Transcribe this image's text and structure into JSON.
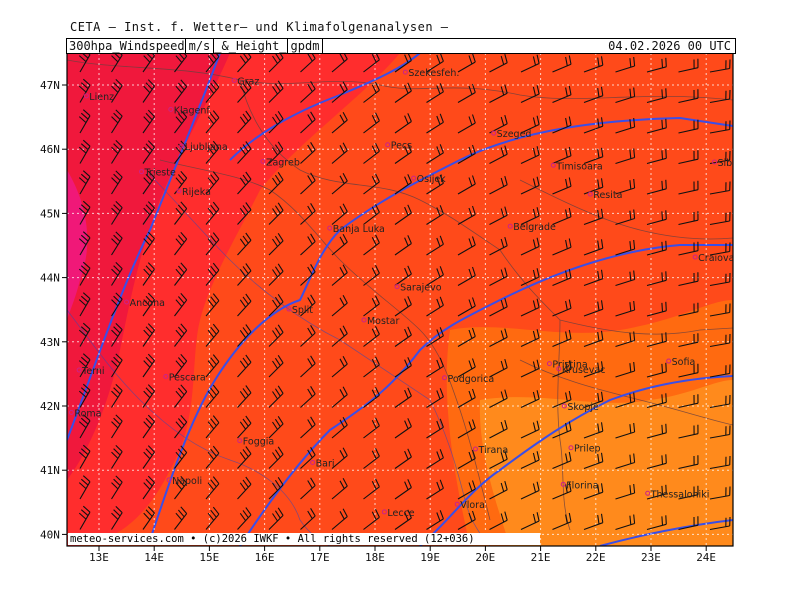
{
  "header": {
    "top_title": "CETA — Inst. f. Wetter— und Klimafolgenanalysen —",
    "product": "300hpa_Windspeed",
    "unit1": "m/s",
    "connector": "_&_Height_",
    "unit2": "gpdm",
    "valid_time": "04.02.2026 00 UTC"
  },
  "footer": {
    "credit": "meteo-services.com • (c)2026 IWKF • All rights reserved (12+036)"
  },
  "axes": {
    "lat_labels": [
      "47N",
      "46N",
      "45N",
      "44N",
      "43N",
      "42N",
      "41N",
      "40N"
    ],
    "lon_labels": [
      "13E",
      "14E",
      "15E",
      "16E",
      "17E",
      "18E",
      "19E",
      "20E",
      "21E",
      "22E",
      "23E",
      "24E"
    ]
  },
  "colors": {
    "wind_strong": "#f0183c",
    "wind_high": "#ff2d2d",
    "wind_mid": "#ff4a1a",
    "wind_low": "#ff6a10",
    "wind_lowest": "#ff8a1c",
    "wind_max": "#f01878",
    "height_contour": "#3a4ee8",
    "border": "#555555"
  },
  "cities": [
    {
      "name": "Szekesfeh.",
      "lon": 18.55,
      "lat": 47.2
    },
    {
      "name": "Graz",
      "lon": 15.45,
      "lat": 47.07
    },
    {
      "name": "Lienz",
      "lon": 12.77,
      "lat": 46.83
    },
    {
      "name": "Klagenf.",
      "lon": 14.3,
      "lat": 46.62
    },
    {
      "name": "Szeged",
      "lon": 20.15,
      "lat": 46.25
    },
    {
      "name": "Ljubljana",
      "lon": 14.5,
      "lat": 46.05
    },
    {
      "name": "Pecs",
      "lon": 18.23,
      "lat": 46.07
    },
    {
      "name": "Zagreb",
      "lon": 15.97,
      "lat": 45.81
    },
    {
      "name": "Trieste",
      "lon": 13.77,
      "lat": 45.65
    },
    {
      "name": "Timisoara",
      "lon": 21.23,
      "lat": 45.75
    },
    {
      "name": "Sibiu",
      "lon": 24.15,
      "lat": 45.8
    },
    {
      "name": "Rijeka",
      "lon": 14.45,
      "lat": 45.35
    },
    {
      "name": "Osijek",
      "lon": 18.7,
      "lat": 45.55
    },
    {
      "name": "Resita",
      "lon": 21.9,
      "lat": 45.3
    },
    {
      "name": "Banja Luka",
      "lon": 17.18,
      "lat": 44.77
    },
    {
      "name": "Belgrade",
      "lon": 20.45,
      "lat": 44.8
    },
    {
      "name": "Craiova",
      "lon": 23.8,
      "lat": 44.32
    },
    {
      "name": "Sarajevo",
      "lon": 18.4,
      "lat": 43.86
    },
    {
      "name": "Ancona",
      "lon": 13.5,
      "lat": 43.62
    },
    {
      "name": "Split",
      "lon": 16.44,
      "lat": 43.51
    },
    {
      "name": "Mostar",
      "lon": 17.8,
      "lat": 43.34
    },
    {
      "name": "Pristina",
      "lon": 21.16,
      "lat": 42.66
    },
    {
      "name": "Sofia",
      "lon": 23.32,
      "lat": 42.7
    },
    {
      "name": "Terni",
      "lon": 12.64,
      "lat": 42.56
    },
    {
      "name": "Krusevac",
      "lon": 21.33,
      "lat": 42.58
    },
    {
      "name": "Pescara",
      "lon": 14.21,
      "lat": 42.46
    },
    {
      "name": "Podgorica",
      "lon": 19.26,
      "lat": 42.44
    },
    {
      "name": "Skopje",
      "lon": 21.43,
      "lat": 42.0
    },
    {
      "name": "Roma",
      "lon": 12.5,
      "lat": 41.9
    },
    {
      "name": "Tirana",
      "lon": 19.82,
      "lat": 41.33
    },
    {
      "name": "Prilep",
      "lon": 21.55,
      "lat": 41.35
    },
    {
      "name": "Foggia",
      "lon": 15.55,
      "lat": 41.46
    },
    {
      "name": "Bari",
      "lon": 16.87,
      "lat": 41.12
    },
    {
      "name": "Napoli",
      "lon": 14.27,
      "lat": 40.85
    },
    {
      "name": "Florina",
      "lon": 21.41,
      "lat": 40.78
    },
    {
      "name": "Thessaloniki",
      "lon": 22.94,
      "lat": 40.64
    },
    {
      "name": "Lecce",
      "lon": 18.17,
      "lat": 40.35
    },
    {
      "name": "Vlora",
      "lon": 19.49,
      "lat": 40.47
    }
  ]
}
